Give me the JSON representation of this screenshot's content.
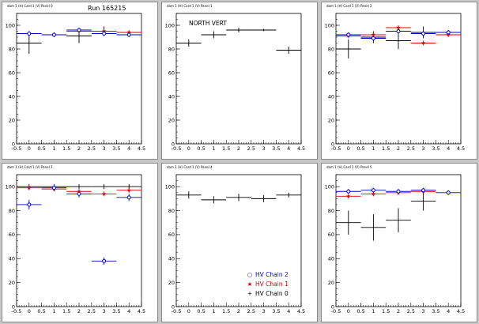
{
  "run_label": "Run 165215",
  "colors": {
    "chain2": "#0000cc",
    "chain1": "#dd0000",
    "chain0": "#000000"
  },
  "legend": {
    "items": [
      {
        "label": "HV Chain 2",
        "series": "chain2",
        "marker": "circle"
      },
      {
        "label": "HV Chain 1",
        "series": "chain1",
        "marker": "star"
      },
      {
        "label": "HV Chain 0",
        "series": "chain0",
        "marker": "cross"
      }
    ]
  },
  "chart_data": [
    {
      "type": "scatter",
      "title": "dam 1 (H) Card 1 (V) Panel 0",
      "annotation": "",
      "xlim": [
        -0.5,
        4.5
      ],
      "ylim": [
        0,
        110
      ],
      "xticks": [
        -0.5,
        0,
        0.5,
        1,
        1.5,
        2,
        2.5,
        3,
        3.5,
        4,
        4.5
      ],
      "yticks": [
        0,
        20,
        40,
        60,
        80,
        100
      ],
      "series": [
        {
          "key": "chain1",
          "points": [
            {
              "x": 0,
              "y": 93,
              "xerr": 0.5,
              "yerr": 2
            },
            {
              "x": 1,
              "y": 92,
              "xerr": 0.5,
              "yerr": 2
            },
            {
              "x": 2,
              "y": 95,
              "xerr": 0.5,
              "yerr": 2
            },
            {
              "x": 3,
              "y": 95,
              "xerr": 0.5,
              "yerr": 2
            },
            {
              "x": 4,
              "y": 94,
              "xerr": 0.5,
              "yerr": 2
            }
          ]
        },
        {
          "key": "chain2",
          "points": [
            {
              "x": 0,
              "y": 93,
              "xerr": 0.5,
              "yerr": 2
            },
            {
              "x": 1,
              "y": 92,
              "xerr": 0.5,
              "yerr": 2
            },
            {
              "x": 2,
              "y": 96,
              "xerr": 0.5,
              "yerr": 2
            },
            {
              "x": 3,
              "y": 93,
              "xerr": 0.5,
              "yerr": 2
            },
            {
              "x": 4,
              "y": 92,
              "xerr": 0.5,
              "yerr": 2
            }
          ]
        },
        {
          "key": "chain0",
          "points": [
            {
              "x": 0,
              "y": 85,
              "xerr": 0.5,
              "yerr": 9
            },
            {
              "x": 2,
              "y": 91,
              "xerr": 0.5,
              "yerr": 6
            },
            {
              "x": 3,
              "y": 95,
              "xerr": 0.5,
              "yerr": 4
            }
          ]
        }
      ]
    },
    {
      "type": "scatter",
      "title": "dam 1 (H) Card 1 (V) Panel 1",
      "annotation": "NORTH VERT",
      "xlim": [
        -0.5,
        4.5
      ],
      "ylim": [
        0,
        110
      ],
      "xticks": [
        -0.5,
        0,
        0.5,
        1,
        1.5,
        2,
        2.5,
        3,
        3.5,
        4,
        4.5
      ],
      "yticks": [
        0,
        20,
        40,
        60,
        80,
        100
      ],
      "series": [
        {
          "key": "chain0",
          "points": [
            {
              "x": 0,
              "y": 85,
              "xerr": 0.5,
              "yerr": 3
            },
            {
              "x": 1,
              "y": 92,
              "xerr": 0.5,
              "yerr": 3
            },
            {
              "x": 2,
              "y": 96,
              "xerr": 0.5,
              "yerr": 2
            },
            {
              "x": 3,
              "y": 96,
              "xerr": 0.5,
              "yerr": 1
            },
            {
              "x": 4,
              "y": 79,
              "xerr": 0.5,
              "yerr": 3
            }
          ]
        }
      ]
    },
    {
      "type": "scatter",
      "title": "dam 1 (H) Card 1 (V) Panel 2",
      "annotation": "",
      "xlim": [
        -0.5,
        4.5
      ],
      "ylim": [
        0,
        110
      ],
      "xticks": [
        -0.5,
        0,
        0.5,
        1,
        1.5,
        2,
        2.5,
        3,
        3.5,
        4,
        4.5
      ],
      "yticks": [
        0,
        20,
        40,
        60,
        80,
        100
      ],
      "series": [
        {
          "key": "chain1",
          "points": [
            {
              "x": 0,
              "y": 91,
              "xerr": 0.5,
              "yerr": 2
            },
            {
              "x": 1,
              "y": 92,
              "xerr": 0.5,
              "yerr": 2
            },
            {
              "x": 2,
              "y": 98,
              "xerr": 0.5,
              "yerr": 2
            },
            {
              "x": 3,
              "y": 85,
              "xerr": 0.5,
              "yerr": 2
            },
            {
              "x": 4,
              "y": 92,
              "xerr": 0.5,
              "yerr": 2
            }
          ]
        },
        {
          "key": "chain2",
          "points": [
            {
              "x": 0,
              "y": 92,
              "xerr": 0.5,
              "yerr": 2
            },
            {
              "x": 1,
              "y": 89,
              "xerr": 0.5,
              "yerr": 2
            },
            {
              "x": 2,
              "y": 95,
              "xerr": 0.5,
              "yerr": 2
            },
            {
              "x": 3,
              "y": 93,
              "xerr": 0.5,
              "yerr": 2
            },
            {
              "x": 4,
              "y": 94,
              "xerr": 0.5,
              "yerr": 2
            }
          ]
        },
        {
          "key": "chain0",
          "points": [
            {
              "x": 0,
              "y": 80,
              "xerr": 0.5,
              "yerr": 8
            },
            {
              "x": 1,
              "y": 90,
              "xerr": 0.5,
              "yerr": 5
            },
            {
              "x": 2,
              "y": 87,
              "xerr": 0.5,
              "yerr": 7
            },
            {
              "x": 3,
              "y": 94,
              "xerr": 0.5,
              "yerr": 5
            }
          ]
        }
      ]
    },
    {
      "type": "scatter",
      "title": "dam 1 (H) Card 1 (V) Panel 3",
      "annotation": "",
      "xlim": [
        -0.5,
        4.5
      ],
      "ylim": [
        0,
        110
      ],
      "xticks": [
        -0.5,
        0,
        0.5,
        1,
        1.5,
        2,
        2.5,
        3,
        3.5,
        4,
        4.5
      ],
      "yticks": [
        0,
        20,
        40,
        60,
        80,
        100
      ],
      "series": [
        {
          "key": "chain1",
          "points": [
            {
              "x": 0,
              "y": 99,
              "xerr": 0.5,
              "yerr": 2
            },
            {
              "x": 1,
              "y": 98,
              "xerr": 0.5,
              "yerr": 2
            },
            {
              "x": 2,
              "y": 96,
              "xerr": 0.5,
              "yerr": 2
            },
            {
              "x": 3,
              "y": 94,
              "xerr": 0.5,
              "yerr": 2
            },
            {
              "x": 4,
              "y": 97,
              "xerr": 0.5,
              "yerr": 2
            }
          ]
        },
        {
          "key": "chain2",
          "points": [
            {
              "x": 0,
              "y": 85,
              "xerr": 0.5,
              "yerr": 4
            },
            {
              "x": 1,
              "y": 99,
              "xerr": 0.5,
              "yerr": 2
            },
            {
              "x": 2,
              "y": 94,
              "xerr": 0.5,
              "yerr": 3
            },
            {
              "x": 3,
              "y": 38,
              "xerr": 0.5,
              "yerr": 3
            },
            {
              "x": 4,
              "y": 91,
              "xerr": 0.5,
              "yerr": 3
            }
          ]
        },
        {
          "key": "chain0",
          "points": [
            {
              "x": 0,
              "y": 100,
              "xerr": 0.5,
              "yerr": 2
            },
            {
              "x": 1,
              "y": 100,
              "xerr": 0.5,
              "yerr": 2
            },
            {
              "x": 2,
              "y": 100,
              "xerr": 0.5,
              "yerr": 2
            },
            {
              "x": 3,
              "y": 100,
              "xerr": 0.5,
              "yerr": 2
            },
            {
              "x": 4,
              "y": 100,
              "xerr": 0.5,
              "yerr": 2
            }
          ]
        }
      ]
    },
    {
      "type": "scatter",
      "title": "dam 1 (H) Card 1 (V) Panel 4",
      "annotation": "",
      "xlim": [
        -0.5,
        4.5
      ],
      "ylim": [
        0,
        110
      ],
      "xticks": [
        -0.5,
        0,
        0.5,
        1,
        1.5,
        2,
        2.5,
        3,
        3.5,
        4,
        4.5
      ],
      "yticks": [
        0,
        20,
        40,
        60,
        80,
        100
      ],
      "series": [
        {
          "key": "chain0",
          "points": [
            {
              "x": 0,
              "y": 93,
              "xerr": 0.5,
              "yerr": 3
            },
            {
              "x": 1,
              "y": 89,
              "xerr": 0.5,
              "yerr": 3
            },
            {
              "x": 2,
              "y": 91,
              "xerr": 0.5,
              "yerr": 3
            },
            {
              "x": 3,
              "y": 90,
              "xerr": 0.5,
              "yerr": 3
            },
            {
              "x": 4,
              "y": 93,
              "xerr": 0.5,
              "yerr": 2
            }
          ]
        }
      ]
    },
    {
      "type": "scatter",
      "title": "dam 1 (H) Card 1 (V) Panel 5",
      "annotation": "",
      "xlim": [
        -0.5,
        4.5
      ],
      "ylim": [
        0,
        110
      ],
      "xticks": [
        -0.5,
        0,
        0.5,
        1,
        1.5,
        2,
        2.5,
        3,
        3.5,
        4,
        4.5
      ],
      "yticks": [
        0,
        20,
        40,
        60,
        80,
        100
      ],
      "series": [
        {
          "key": "chain1",
          "points": [
            {
              "x": 0,
              "y": 92,
              "xerr": 0.5,
              "yerr": 2
            },
            {
              "x": 1,
              "y": 94,
              "xerr": 0.5,
              "yerr": 2
            },
            {
              "x": 2,
              "y": 95,
              "xerr": 0.5,
              "yerr": 2
            },
            {
              "x": 3,
              "y": 96,
              "xerr": 0.5,
              "yerr": 2
            }
          ]
        },
        {
          "key": "chain2",
          "points": [
            {
              "x": 0,
              "y": 96,
              "xerr": 0.5,
              "yerr": 2
            },
            {
              "x": 1,
              "y": 97,
              "xerr": 0.5,
              "yerr": 2
            },
            {
              "x": 2,
              "y": 96,
              "xerr": 0.5,
              "yerr": 2
            },
            {
              "x": 3,
              "y": 97,
              "xerr": 0.5,
              "yerr": 2
            },
            {
              "x": 4,
              "y": 95,
              "xerr": 0.5,
              "yerr": 2
            }
          ]
        },
        {
          "key": "chain0",
          "points": [
            {
              "x": 0,
              "y": 70,
              "xerr": 0.5,
              "yerr": 10
            },
            {
              "x": 1,
              "y": 66,
              "xerr": 0.5,
              "yerr": 11
            },
            {
              "x": 2,
              "y": 72,
              "xerr": 0.5,
              "yerr": 10
            },
            {
              "x": 3,
              "y": 88,
              "xerr": 0.5,
              "yerr": 8
            }
          ]
        }
      ]
    }
  ]
}
